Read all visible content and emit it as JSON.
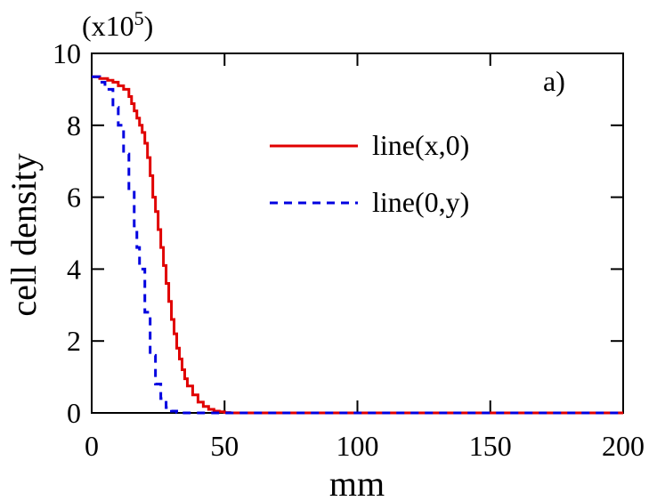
{
  "chart_data": {
    "type": "line",
    "xlabel": "mm",
    "ylabel": "cell density",
    "y_multiplier_label": "(x10",
    "y_multiplier_exp": "5",
    "y_multiplier_close": ")",
    "panel_label": "a)",
    "xlim": [
      0,
      200
    ],
    "ylim": [
      0,
      10
    ],
    "x_ticks": [
      0,
      50,
      100,
      150,
      200
    ],
    "y_ticks": [
      0,
      2,
      4,
      6,
      8,
      10
    ],
    "x_tick_labels": [
      "0",
      "50",
      "100",
      "150",
      "200"
    ],
    "y_tick_labels": [
      "0",
      "2",
      "4",
      "6",
      "8",
      "10"
    ],
    "grid": false,
    "legend_position": "top-right",
    "series": [
      {
        "name": "line(x,0)",
        "color": "#e00000",
        "style": "solid",
        "x": [
          0,
          3,
          6,
          8,
          10,
          12,
          14,
          15,
          16,
          17,
          18,
          19,
          20,
          21,
          22,
          23,
          24,
          25,
          26,
          27,
          28,
          29,
          30,
          31,
          32,
          33,
          34,
          35,
          36,
          38,
          40,
          42,
          44,
          46,
          48,
          50,
          52,
          55,
          60,
          100,
          150,
          200
        ],
        "y": [
          9.35,
          9.3,
          9.25,
          9.2,
          9.1,
          9.0,
          8.8,
          8.6,
          8.4,
          8.2,
          8.0,
          7.8,
          7.5,
          7.1,
          6.6,
          6.0,
          5.6,
          5.1,
          4.6,
          4.1,
          3.6,
          3.1,
          2.6,
          2.2,
          1.8,
          1.5,
          1.2,
          0.95,
          0.75,
          0.5,
          0.3,
          0.18,
          0.1,
          0.05,
          0.03,
          0.01,
          0.0,
          0.0,
          0.0,
          0.0,
          0.0,
          0.0
        ]
      },
      {
        "name": "line(0,y)",
        "color": "#0000e0",
        "style": "dashed",
        "x": [
          0,
          3,
          5,
          8,
          10,
          12,
          14,
          16,
          17,
          18,
          20,
          22,
          24,
          26,
          28,
          30,
          32,
          34,
          40,
          100,
          150,
          200
        ],
        "y": [
          9.35,
          9.2,
          9.0,
          8.5,
          8.0,
          7.2,
          6.2,
          5.2,
          4.6,
          4.0,
          2.8,
          1.6,
          0.8,
          0.4,
          0.15,
          0.05,
          0.01,
          0.0,
          0.0,
          0.0,
          0.0,
          0.0
        ]
      }
    ]
  }
}
